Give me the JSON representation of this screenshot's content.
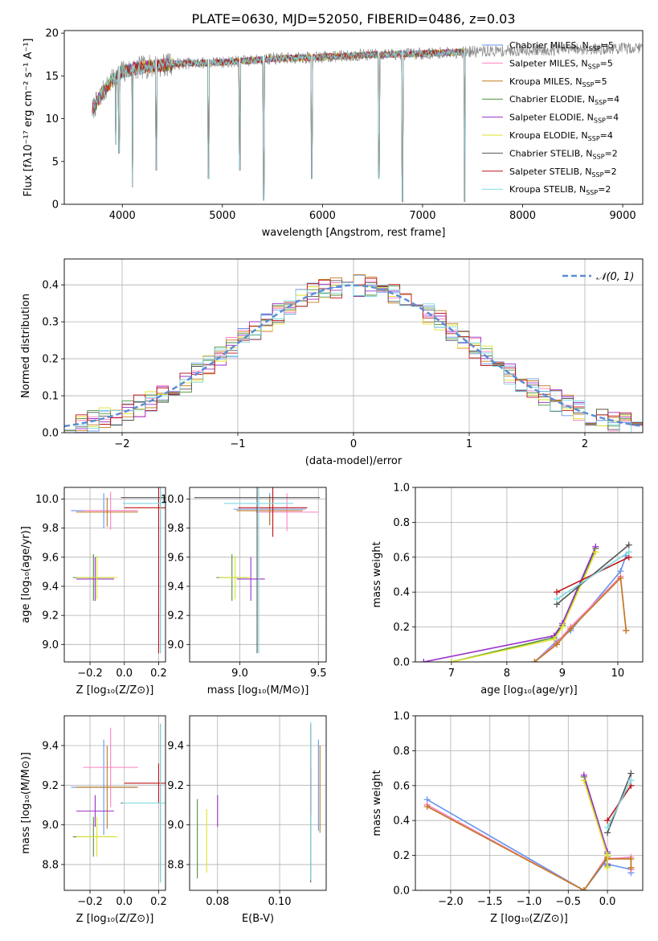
{
  "figure": {
    "title": "PLATE=0630, MJD=52050, FIBERID=0486, z=0.03"
  },
  "models": [
    {
      "name": "Chabrier MILES",
      "nssp": "5",
      "color": "#6495ED"
    },
    {
      "name": "Salpeter MILES",
      "nssp": "5",
      "color": "#FF7FBF"
    },
    {
      "name": "Kroupa MILES",
      "nssp": "5",
      "color": "#C07A1F"
    },
    {
      "name": "Chabrier ELODIE",
      "nssp": "4",
      "color": "#4E8F3A"
    },
    {
      "name": "Salpeter ELODIE",
      "nssp": "4",
      "color": "#9B30C8"
    },
    {
      "name": "Kroupa ELODIE",
      "nssp": "4",
      "color": "#DDE22A"
    },
    {
      "name": "Chabrier STELIB",
      "nssp": "2",
      "color": "#555555"
    },
    {
      "name": "Salpeter STELIB",
      "nssp": "2",
      "color": "#C0151A"
    },
    {
      "name": "Kroupa STELIB",
      "nssp": "2",
      "color": "#7FD8E0"
    }
  ],
  "chart_data": [
    {
      "id": "spectrum",
      "type": "line",
      "xlabel": "wavelength [Angstrom, rest frame]",
      "ylabel": "Flux [fλ10⁻¹⁷ erg cm⁻² s⁻¹ A⁻¹]",
      "xlim": [
        3420,
        9200
      ],
      "ylim": [
        0,
        20.3
      ],
      "xticks": [
        4000,
        5000,
        6000,
        7000,
        8000,
        9000
      ],
      "yticks": [
        0,
        5,
        10,
        15,
        20
      ],
      "data_range": [
        3700,
        9200
      ],
      "model_range": [
        3700,
        7430
      ],
      "continuum": [
        [
          3700,
          11
        ],
        [
          3800,
          13
        ],
        [
          3900,
          14.5
        ],
        [
          4000,
          15.5
        ],
        [
          4200,
          16
        ],
        [
          4500,
          16.4
        ],
        [
          5000,
          16.6
        ],
        [
          5500,
          17
        ],
        [
          6000,
          17.2
        ],
        [
          6500,
          17.5
        ],
        [
          7000,
          17.6
        ],
        [
          7400,
          17.8
        ],
        [
          8000,
          18
        ],
        [
          8500,
          18.1
        ],
        [
          9000,
          18.2
        ],
        [
          9200,
          18.3
        ]
      ],
      "dips": [
        [
          3934,
          7
        ],
        [
          3969,
          6
        ],
        [
          4102,
          2
        ],
        [
          4340,
          4
        ],
        [
          4861,
          3
        ],
        [
          5175,
          4
        ],
        [
          5411,
          0.5
        ],
        [
          5893,
          3
        ],
        [
          6563,
          3
        ],
        [
          6800,
          0.3
        ],
        [
          7420,
          0.3
        ]
      ],
      "grid": false,
      "legend": "right"
    },
    {
      "id": "residual-hist",
      "type": "line",
      "xlabel": "(data-model)/error",
      "ylabel": "Normed distribution",
      "xlim": [
        -2.5,
        2.5
      ],
      "ylim": [
        0,
        0.47
      ],
      "xticks": [
        -2,
        -1,
        0,
        1,
        2
      ],
      "yticks": [
        0.0,
        0.1,
        0.2,
        0.3,
        0.4
      ],
      "bin_width": 0.1,
      "reference_label": "𝒩(0, 1)",
      "grid": true,
      "legend": "top-right"
    },
    {
      "id": "age-vs-Z",
      "type": "scatter",
      "xlabel": "Z [log₁₀(Z/Z⊙)]",
      "ylabel": "age  [log₁₀(age/yr)]",
      "xlim": [
        -0.35,
        0.24
      ],
      "ylim": [
        8.88,
        10.08
      ],
      "xticks": [
        -0.2,
        0.0,
        0.2
      ],
      "yticks": [
        9.0,
        9.2,
        9.4,
        9.6,
        9.8,
        10.0
      ],
      "series": [
        {
          "x": -0.12,
          "y": 9.92,
          "ex": 0.19,
          "ey": 0.12
        },
        {
          "x": -0.08,
          "y": 9.92,
          "ex": 0.16,
          "ey": 0.13
        },
        {
          "x": -0.1,
          "y": 9.91,
          "ex": 0.18,
          "ey": 0.1
        },
        {
          "x": -0.18,
          "y": 9.46,
          "ex": 0.12,
          "ey": 0.16
        },
        {
          "x": -0.17,
          "y": 9.45,
          "ex": 0.11,
          "ey": 0.15
        },
        {
          "x": -0.16,
          "y": 9.46,
          "ex": 0.12,
          "ey": 0.15
        },
        {
          "x": 0.21,
          "y": 10.01,
          "ex": 0.23,
          "ey": 1.07
        },
        {
          "x": 0.2,
          "y": 9.94,
          "ex": 0.2,
          "ey": 1.0
        },
        {
          "x": 0.21,
          "y": 9.97,
          "ex": 0.22,
          "ey": 1.03
        }
      ],
      "grid": true
    },
    {
      "id": "age-vs-mass",
      "type": "scatter",
      "xlabel": "mass [log₁₀(M/M⊙)]",
      "ylabel": "",
      "xlim": [
        8.68,
        9.55
      ],
      "ylim": [
        8.88,
        10.08
      ],
      "xticks": [
        9.0,
        9.5
      ],
      "yticks": [
        9.0,
        9.2,
        9.4,
        9.6,
        9.8,
        10.0
      ],
      "series": [
        {
          "x": 9.19,
          "y": 9.93,
          "ex": 0.23,
          "ey": 0.11
        },
        {
          "x": 9.3,
          "y": 9.91,
          "ex": 0.2,
          "ey": 0.13
        },
        {
          "x": 9.19,
          "y": 9.92,
          "ex": 0.21,
          "ey": 0.1
        },
        {
          "x": 8.95,
          "y": 9.46,
          "ex": 0.1,
          "ey": 0.16
        },
        {
          "x": 9.07,
          "y": 9.45,
          "ex": 0.09,
          "ey": 0.15
        },
        {
          "x": 8.97,
          "y": 9.46,
          "ex": 0.1,
          "ey": 0.15
        },
        {
          "x": 9.11,
          "y": 10.01,
          "ex": 0.4,
          "ey": 1.07
        },
        {
          "x": 9.21,
          "y": 9.94,
          "ex": 0.22,
          "ey": 0.2
        },
        {
          "x": 9.12,
          "y": 9.97,
          "ex": 0.22,
          "ey": 1.03
        }
      ],
      "grid": true
    },
    {
      "id": "mass-weight-vs-age",
      "type": "line",
      "xlabel": "age  [log₁₀(age/yr)]",
      "ylabel": "mass weight",
      "xlim": [
        6.35,
        10.45
      ],
      "ylim": [
        0,
        1.0
      ],
      "xticks": [
        7,
        8,
        9,
        10
      ],
      "yticks": [
        0.0,
        0.2,
        0.4,
        0.6,
        0.8,
        1.0
      ],
      "series": [
        {
          "x": [
            8.5,
            8.9,
            9.15,
            10.05,
            10.15
          ],
          "y": [
            0.0,
            0.12,
            0.18,
            0.52,
            0.61
          ]
        },
        {
          "x": [
            8.5,
            8.9,
            9.15,
            10.05,
            10.15
          ],
          "y": [
            0.0,
            0.11,
            0.2,
            0.49,
            0.18
          ]
        },
        {
          "x": [
            8.5,
            8.9,
            9.15,
            10.05,
            10.15
          ],
          "y": [
            0.0,
            0.1,
            0.19,
            0.48,
            0.18
          ]
        },
        {
          "x": [
            7.0,
            8.85,
            9.0,
            9.6
          ],
          "y": [
            0.0,
            0.14,
            0.21,
            0.65
          ]
        },
        {
          "x": [
            6.5,
            8.85,
            9.0,
            9.6
          ],
          "y": [
            0.0,
            0.15,
            0.22,
            0.66
          ]
        },
        {
          "x": [
            7.0,
            8.85,
            9.0,
            9.6
          ],
          "y": [
            0.0,
            0.13,
            0.2,
            0.63
          ]
        },
        {
          "x": [
            8.9,
            10.2
          ],
          "y": [
            0.33,
            0.67
          ]
        },
        {
          "x": [
            8.9,
            10.2
          ],
          "y": [
            0.4,
            0.6
          ]
        },
        {
          "x": [
            8.9,
            10.2
          ],
          "y": [
            0.36,
            0.63
          ]
        }
      ],
      "grid": true
    },
    {
      "id": "mass-vs-Z",
      "type": "scatter",
      "xlabel": "Z [log₁₀(Z/Z⊙)]",
      "ylabel": "mass [log₁₀(M/M⊙)]",
      "xlim": [
        -0.35,
        0.24
      ],
      "ylim": [
        8.67,
        9.55
      ],
      "xticks": [
        -0.2,
        0.0,
        0.2
      ],
      "yticks": [
        8.8,
        9.0,
        9.2,
        9.4
      ],
      "series": [
        {
          "x": -0.12,
          "y": 9.19,
          "ex": 0.19,
          "ey": 0.24
        },
        {
          "x": -0.08,
          "y": 9.29,
          "ex": 0.16,
          "ey": 0.2
        },
        {
          "x": -0.1,
          "y": 9.19,
          "ex": 0.18,
          "ey": 0.21
        },
        {
          "x": -0.18,
          "y": 8.94,
          "ex": 0.12,
          "ey": 0.1
        },
        {
          "x": -0.17,
          "y": 9.07,
          "ex": 0.11,
          "ey": 0.08
        },
        {
          "x": -0.16,
          "y": 8.94,
          "ex": 0.12,
          "ey": 0.1
        },
        {
          "x": 0.21,
          "y": 9.11,
          "ex": 0.23,
          "ey": 0.4
        },
        {
          "x": 0.2,
          "y": 9.21,
          "ex": 0.2,
          "ey": 0.1
        },
        {
          "x": 0.21,
          "y": 9.11,
          "ex": 0.22,
          "ey": 0.4
        }
      ],
      "grid": true
    },
    {
      "id": "mass-vs-ebv",
      "type": "scatter",
      "xlabel": "E(B-V)",
      "ylabel": "",
      "xlim": [
        0.071,
        0.115
      ],
      "ylim": [
        8.67,
        9.55
      ],
      "xticks": [
        0.08,
        0.1
      ],
      "yticks": [
        8.8,
        9.0,
        9.2,
        9.4
      ],
      "series": [
        {
          "x": 0.1125,
          "y": 9.2,
          "ex": 0,
          "ey": 0.23
        },
        {
          "x": 0.11,
          "y": 9.29,
          "ex": 0,
          "ey": 0.21
        },
        {
          "x": 0.113,
          "y": 9.18,
          "ex": 0,
          "ey": 0.22
        },
        {
          "x": 0.0735,
          "y": 8.93,
          "ex": 0,
          "ey": 0.2
        },
        {
          "x": 0.08,
          "y": 9.07,
          "ex": 0,
          "ey": 0.08
        },
        {
          "x": 0.0765,
          "y": 8.92,
          "ex": 0,
          "ey": 0.16
        },
        {
          "x": 0.11,
          "y": 9.11,
          "ex": 0,
          "ey": 0.4
        },
        {
          "x": 0.11,
          "y": 9.17,
          "ex": 0,
          "ey": 0.12
        },
        {
          "x": 0.11,
          "y": 9.12,
          "ex": 0,
          "ey": 0.4
        }
      ],
      "grid": true
    },
    {
      "id": "mass-weight-vs-Z",
      "type": "line",
      "xlabel": "Z [log₁₀(Z/Z⊙)]",
      "ylabel": "mass weight",
      "xlim": [
        -2.45,
        0.45
      ],
      "ylim": [
        0,
        1.0
      ],
      "xticks": [
        -2.0,
        -1.5,
        -1.0,
        -0.5,
        0.0
      ],
      "yticks": [
        0.0,
        0.2,
        0.4,
        0.6,
        0.8,
        1.0
      ],
      "series": [
        {
          "x": [
            -2.3,
            -0.3,
            0.0,
            0.0,
            0.3,
            0.3
          ],
          "y": [
            0.52,
            0.0,
            0.18,
            0.15,
            0.12,
            0.1
          ]
        },
        {
          "x": [
            -2.3,
            -0.3,
            0.0,
            0.0,
            0.3,
            0.3
          ],
          "y": [
            0.49,
            0.0,
            0.2,
            0.18,
            0.19,
            0.12
          ]
        },
        {
          "x": [
            -2.3,
            -0.3,
            0.0,
            0.0,
            0.3,
            0.3
          ],
          "y": [
            0.48,
            0.0,
            0.19,
            0.18,
            0.18,
            0.13
          ]
        },
        {
          "x": [
            -0.3,
            0.0,
            0.0
          ],
          "y": [
            0.65,
            0.21,
            0.14
          ]
        },
        {
          "x": [
            -0.3,
            0.0,
            0.0
          ],
          "y": [
            0.66,
            0.22,
            0.15
          ]
        },
        {
          "x": [
            -0.3,
            0.0,
            0.0
          ],
          "y": [
            0.63,
            0.2,
            0.13
          ]
        },
        {
          "x": [
            0.0,
            0.3
          ],
          "y": [
            0.33,
            0.67
          ]
        },
        {
          "x": [
            0.0,
            0.3
          ],
          "y": [
            0.4,
            0.6
          ]
        },
        {
          "x": [
            0.0,
            0.3
          ],
          "y": [
            0.36,
            0.63
          ]
        }
      ],
      "grid": true
    }
  ]
}
